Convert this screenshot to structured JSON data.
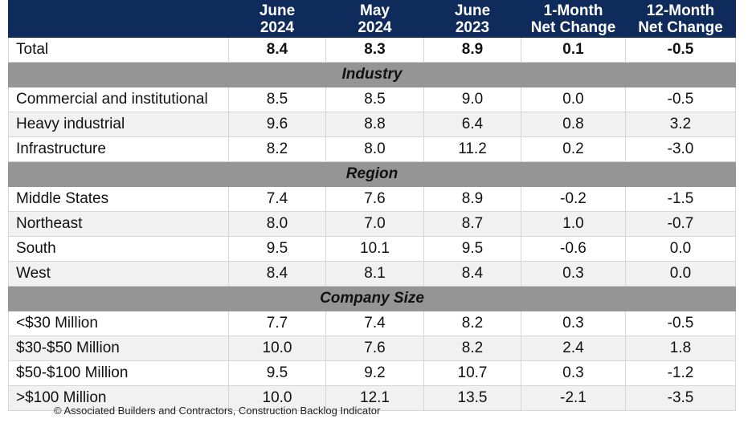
{
  "columns": [
    [
      "June",
      "2024"
    ],
    [
      "May",
      "2024"
    ],
    [
      "June",
      "2023"
    ],
    [
      "1-Month",
      "Net Change"
    ],
    [
      "12-Month",
      "Net Change"
    ]
  ],
  "total": {
    "label": "Total",
    "values": [
      "8.4",
      "8.3",
      "8.9",
      "0.1",
      "-0.5"
    ]
  },
  "sections": [
    {
      "title": "Industry",
      "rows": [
        {
          "label": "Commercial and institutional",
          "values": [
            "8.5",
            "8.5",
            "9.0",
            "0.0",
            "-0.5"
          ]
        },
        {
          "label": "Heavy industrial",
          "values": [
            "9.6",
            "8.8",
            "6.4",
            "0.8",
            "3.2"
          ]
        },
        {
          "label": "Infrastructure",
          "values": [
            "8.2",
            "8.0",
            "11.2",
            "0.2",
            "-3.0"
          ]
        }
      ]
    },
    {
      "title": "Region",
      "rows": [
        {
          "label": "Middle States",
          "values": [
            "7.4",
            "7.6",
            "8.9",
            "-0.2",
            "-1.5"
          ]
        },
        {
          "label": "Northeast",
          "values": [
            "8.0",
            "7.0",
            "8.7",
            "1.0",
            "-0.7"
          ]
        },
        {
          "label": "South",
          "values": [
            "9.5",
            "10.1",
            "9.5",
            "-0.6",
            "0.0"
          ]
        },
        {
          "label": "West",
          "values": [
            "8.4",
            "8.1",
            "8.4",
            "0.3",
            "0.0"
          ]
        }
      ]
    },
    {
      "title": "Company Size",
      "rows": [
        {
          "label": "<$30 Million",
          "values": [
            "7.7",
            "7.4",
            "8.2",
            "0.3",
            "-0.5"
          ]
        },
        {
          "label": "$30-$50 Million",
          "values": [
            "10.0",
            "7.6",
            "8.2",
            "2.4",
            "1.8"
          ]
        },
        {
          "label": "$50-$100 Million",
          "values": [
            "9.5",
            "9.2",
            "10.7",
            "0.3",
            "-1.2"
          ]
        },
        {
          "label": ">$100 Million",
          "values": [
            "10.0",
            "12.1",
            "13.5",
            "-2.1",
            "-3.5"
          ]
        }
      ]
    }
  ],
  "footer": "© Associated Builders and Contractors, Construction Backlog Indicator"
}
